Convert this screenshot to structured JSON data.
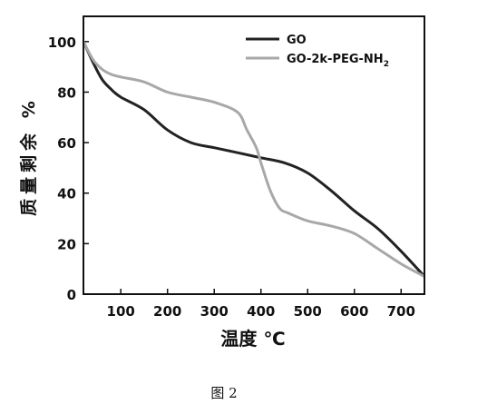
{
  "chart_data": {
    "type": "line",
    "xlabel": "温度 ℃",
    "ylabel": "质量剩余 %",
    "xlim": [
      20,
      750
    ],
    "ylim": [
      0,
      110
    ],
    "x_ticks": [
      100,
      200,
      300,
      400,
      500,
      600,
      700
    ],
    "y_ticks": [
      0,
      20,
      40,
      60,
      80,
      100
    ],
    "legend_position": "top-right",
    "series": [
      {
        "name": "GO",
        "color": "#222222",
        "x": [
          20,
          40,
          60,
          80,
          100,
          150,
          200,
          250,
          300,
          350,
          400,
          450,
          500,
          550,
          600,
          650,
          700,
          750
        ],
        "y": [
          100,
          92,
          85,
          81,
          78,
          73,
          65,
          60,
          58,
          56,
          54,
          52,
          48,
          41,
          33,
          26,
          17,
          7
        ]
      },
      {
        "name": "GO-2k-PEG-NH2",
        "color": "#a8a8a8",
        "x": [
          20,
          40,
          60,
          80,
          100,
          150,
          200,
          250,
          300,
          350,
          370,
          390,
          400,
          420,
          440,
          460,
          500,
          550,
          600,
          650,
          700,
          750
        ],
        "y": [
          100,
          93,
          89,
          87,
          86,
          84,
          80,
          78,
          76,
          72,
          65,
          58,
          52,
          41,
          34,
          32,
          29,
          27,
          24,
          18,
          12,
          7
        ]
      }
    ]
  },
  "caption": "图 2",
  "legend_labels": {
    "go": "GO",
    "peg_main": "GO-2k-PEG-NH",
    "peg_sub": "2"
  }
}
